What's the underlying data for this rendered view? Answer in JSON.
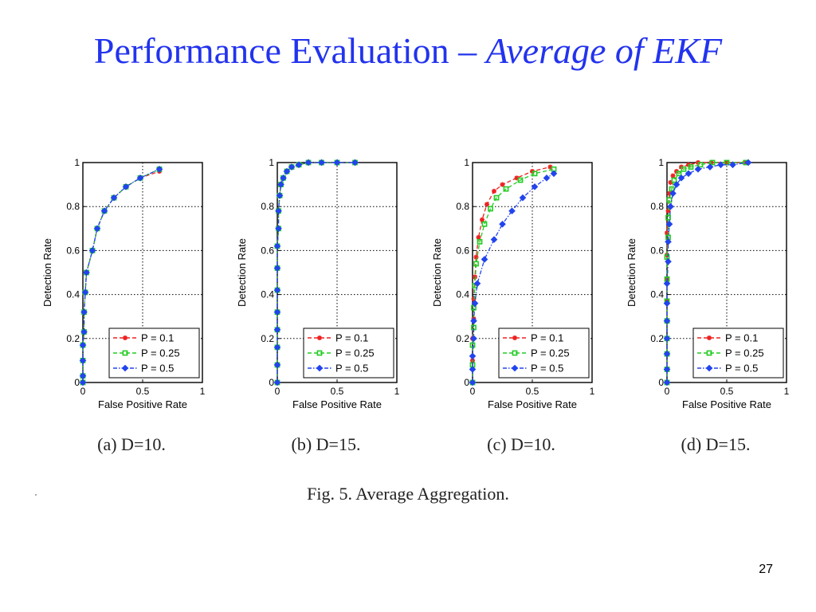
{
  "slide": {
    "title_main": "Performance Evaluation – ",
    "title_italic": "Average of EKF",
    "figure_caption": "Fig. 5.   Average Aggregation.",
    "page_number": "27"
  },
  "colors": {
    "title": "#2233ee",
    "red": "#ee2222",
    "green": "#22cc22",
    "blue": "#2244ee"
  },
  "chart_data": [
    {
      "type": "line",
      "caption": "(a)  D=10.",
      "xlabel": "False Positive Rate",
      "ylabel": "Detection Rate",
      "xlim": [
        0,
        1
      ],
      "ylim": [
        0,
        1
      ],
      "xticks": [
        "0",
        "0.5",
        "1"
      ],
      "yticks": [
        "0",
        "0.2",
        "0.4",
        "0.6",
        "0.8",
        "1"
      ],
      "grid": true,
      "legend": "bottom-right",
      "series": [
        {
          "name": "P = 0.1",
          "color": "#ee2222",
          "marker": "star",
          "x": [
            0,
            0.0,
            0.0,
            0.0,
            0.01,
            0.01,
            0.02,
            0.03,
            0.08,
            0.12,
            0.18,
            0.26,
            0.36,
            0.48,
            0.64
          ],
          "y": [
            0,
            0.03,
            0.1,
            0.17,
            0.23,
            0.32,
            0.41,
            0.5,
            0.6,
            0.7,
            0.78,
            0.84,
            0.89,
            0.93,
            0.96
          ]
        },
        {
          "name": "P = 0.25",
          "color": "#22cc22",
          "marker": "square",
          "x": [
            0,
            0.0,
            0.0,
            0.0,
            0.01,
            0.01,
            0.02,
            0.03,
            0.08,
            0.12,
            0.18,
            0.26,
            0.36,
            0.48,
            0.64
          ],
          "y": [
            0,
            0.03,
            0.1,
            0.17,
            0.23,
            0.32,
            0.41,
            0.5,
            0.6,
            0.7,
            0.78,
            0.84,
            0.89,
            0.93,
            0.97
          ]
        },
        {
          "name": "P = 0.5",
          "color": "#2244ee",
          "marker": "diamond",
          "x": [
            0,
            0.0,
            0.0,
            0.0,
            0.01,
            0.01,
            0.02,
            0.03,
            0.08,
            0.12,
            0.18,
            0.26,
            0.36,
            0.48,
            0.64
          ],
          "y": [
            0,
            0.03,
            0.1,
            0.17,
            0.23,
            0.32,
            0.41,
            0.5,
            0.6,
            0.7,
            0.78,
            0.84,
            0.89,
            0.93,
            0.97
          ]
        }
      ]
    },
    {
      "type": "line",
      "caption": "(b)  D=15.",
      "xlabel": "False Positive Rate",
      "ylabel": "Detection Rate",
      "xlim": [
        0,
        1
      ],
      "ylim": [
        0,
        1
      ],
      "xticks": [
        "0",
        "0.5",
        "1"
      ],
      "yticks": [
        "0",
        "0.2",
        "0.4",
        "0.6",
        "0.8",
        "1"
      ],
      "grid": true,
      "legend": "bottom-right",
      "series": [
        {
          "name": "P = 0.1",
          "color": "#ee2222",
          "marker": "star",
          "x": [
            0,
            0,
            0,
            0,
            0,
            0,
            0,
            0.0,
            0.01,
            0.01,
            0.02,
            0.03,
            0.05,
            0.08,
            0.12,
            0.18,
            0.26,
            0.37,
            0.5,
            0.65
          ],
          "y": [
            0,
            0.08,
            0.16,
            0.24,
            0.32,
            0.42,
            0.52,
            0.62,
            0.7,
            0.78,
            0.85,
            0.9,
            0.93,
            0.96,
            0.98,
            0.99,
            1.0,
            1.0,
            1.0,
            1.0
          ]
        },
        {
          "name": "P = 0.25",
          "color": "#22cc22",
          "marker": "square",
          "x": [
            0,
            0,
            0,
            0,
            0,
            0,
            0,
            0.0,
            0.01,
            0.01,
            0.02,
            0.03,
            0.05,
            0.08,
            0.12,
            0.18,
            0.26,
            0.37,
            0.5,
            0.65
          ],
          "y": [
            0,
            0.08,
            0.16,
            0.24,
            0.32,
            0.42,
            0.52,
            0.62,
            0.7,
            0.78,
            0.85,
            0.9,
            0.93,
            0.96,
            0.98,
            0.99,
            1.0,
            1.0,
            1.0,
            1.0
          ]
        },
        {
          "name": "P = 0.5",
          "color": "#2244ee",
          "marker": "diamond",
          "x": [
            0,
            0,
            0,
            0,
            0,
            0,
            0,
            0.0,
            0.01,
            0.01,
            0.02,
            0.03,
            0.05,
            0.08,
            0.12,
            0.18,
            0.26,
            0.37,
            0.5,
            0.65
          ],
          "y": [
            0,
            0.08,
            0.16,
            0.24,
            0.32,
            0.42,
            0.52,
            0.62,
            0.7,
            0.78,
            0.85,
            0.9,
            0.93,
            0.96,
            0.98,
            0.99,
            1.0,
            1.0,
            1.0,
            1.0
          ]
        }
      ]
    },
    {
      "type": "line",
      "caption": "(c)  D=10.",
      "xlabel": "False Positive Rate",
      "ylabel": "Detection Rate",
      "xlim": [
        0,
        1
      ],
      "ylim": [
        0,
        1
      ],
      "xticks": [
        "0",
        "0.5",
        "1"
      ],
      "yticks": [
        "0",
        "0.2",
        "0.4",
        "0.6",
        "0.8",
        "1"
      ],
      "grid": true,
      "legend": "bottom-right",
      "series": [
        {
          "name": "P = 0.1",
          "color": "#ee2222",
          "marker": "star",
          "x": [
            0,
            0.0,
            0.0,
            0.01,
            0.01,
            0.02,
            0.03,
            0.05,
            0.08,
            0.12,
            0.18,
            0.25,
            0.37,
            0.5,
            0.65
          ],
          "y": [
            0,
            0.1,
            0.2,
            0.29,
            0.38,
            0.48,
            0.57,
            0.66,
            0.74,
            0.81,
            0.87,
            0.9,
            0.93,
            0.96,
            0.98
          ]
        },
        {
          "name": "P = 0.25",
          "color": "#22cc22",
          "marker": "square",
          "x": [
            0,
            0.0,
            0.0,
            0.01,
            0.01,
            0.02,
            0.03,
            0.06,
            0.1,
            0.15,
            0.2,
            0.28,
            0.4,
            0.52,
            0.68
          ],
          "y": [
            0,
            0.08,
            0.17,
            0.25,
            0.34,
            0.44,
            0.54,
            0.64,
            0.72,
            0.79,
            0.84,
            0.88,
            0.92,
            0.95,
            0.97
          ]
        },
        {
          "name": "P = 0.5",
          "color": "#2244ee",
          "marker": "diamond",
          "x": [
            0,
            0.0,
            0.0,
            0.01,
            0.01,
            0.02,
            0.04,
            0.1,
            0.18,
            0.25,
            0.33,
            0.42,
            0.52,
            0.62,
            0.68
          ],
          "y": [
            0,
            0.06,
            0.12,
            0.2,
            0.28,
            0.36,
            0.45,
            0.56,
            0.65,
            0.72,
            0.78,
            0.84,
            0.89,
            0.93,
            0.95
          ]
        }
      ]
    },
    {
      "type": "line",
      "caption": "(d)  D=15.",
      "xlabel": "False Positive Rate",
      "ylabel": "Detection Rate",
      "xlim": [
        0,
        1
      ],
      "ylim": [
        0,
        1
      ],
      "xticks": [
        "0",
        "0.5",
        "1"
      ],
      "yticks": [
        "0",
        "0.2",
        "0.4",
        "0.6",
        "0.8",
        "1"
      ],
      "grid": true,
      "legend": "bottom-right",
      "series": [
        {
          "name": "P = 0.1",
          "color": "#ee2222",
          "marker": "star",
          "x": [
            0,
            0,
            0,
            0,
            0,
            0,
            0,
            0,
            0.0,
            0.01,
            0.02,
            0.03,
            0.05,
            0.08,
            0.12,
            0.18,
            0.26,
            0.37,
            0.5,
            0.65
          ],
          "y": [
            0,
            0.06,
            0.13,
            0.2,
            0.28,
            0.37,
            0.47,
            0.58,
            0.68,
            0.78,
            0.86,
            0.91,
            0.94,
            0.96,
            0.98,
            0.99,
            1.0,
            1.0,
            1.0,
            1.0
          ]
        },
        {
          "name": "P = 0.25",
          "color": "#22cc22",
          "marker": "square",
          "x": [
            0,
            0,
            0,
            0,
            0,
            0,
            0,
            0,
            0.01,
            0.01,
            0.02,
            0.04,
            0.06,
            0.1,
            0.14,
            0.2,
            0.28,
            0.38,
            0.5,
            0.66
          ],
          "y": [
            0,
            0.06,
            0.13,
            0.2,
            0.28,
            0.37,
            0.47,
            0.57,
            0.66,
            0.75,
            0.83,
            0.88,
            0.92,
            0.95,
            0.97,
            0.98,
            0.99,
            1.0,
            1.0,
            1.0
          ]
        },
        {
          "name": "P = 0.5",
          "color": "#2244ee",
          "marker": "diamond",
          "x": [
            0,
            0,
            0,
            0,
            0,
            0,
            0.0,
            0.01,
            0.01,
            0.02,
            0.03,
            0.05,
            0.08,
            0.12,
            0.18,
            0.26,
            0.36,
            0.45,
            0.55,
            0.68
          ],
          "y": [
            0,
            0.06,
            0.13,
            0.2,
            0.28,
            0.36,
            0.45,
            0.55,
            0.64,
            0.72,
            0.8,
            0.86,
            0.9,
            0.93,
            0.95,
            0.97,
            0.98,
            0.99,
            0.99,
            1.0
          ]
        }
      ]
    }
  ]
}
